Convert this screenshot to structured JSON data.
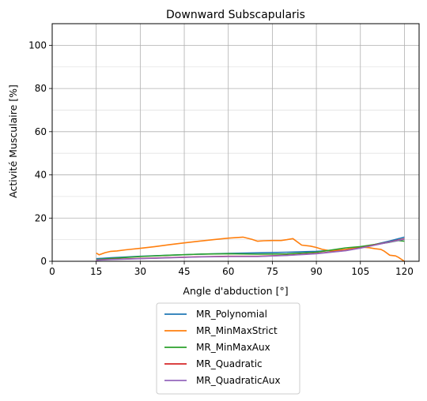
{
  "chart_data": {
    "type": "line",
    "title": "Downward Subscapularis",
    "xlabel": "Angle d'abduction [°]",
    "ylabel": "Activité Musculaire [%]",
    "xlim": [
      0,
      125
    ],
    "ylim": [
      0,
      110
    ],
    "xticks": [
      0,
      15,
      30,
      45,
      60,
      75,
      90,
      105,
      120
    ],
    "yticks": [
      0,
      20,
      40,
      60,
      80,
      100
    ],
    "yticks_minor": [
      10,
      30,
      50,
      70,
      90
    ],
    "grid": true,
    "legend_position": "below",
    "series": [
      {
        "name": "MR_Polynomial",
        "color": "#1f77b4",
        "x": [
          15,
          20,
          30,
          40,
          50,
          60,
          70,
          80,
          90,
          100,
          105,
          110,
          115,
          120
        ],
        "y": [
          1.2,
          1.6,
          2.3,
          2.8,
          3.3,
          3.6,
          3.9,
          4.2,
          4.6,
          5.4,
          6.4,
          7.8,
          9.4,
          11.2
        ]
      },
      {
        "name": "MR_MinMaxStrict",
        "color": "#ff7f0e",
        "x": [
          15,
          16,
          18,
          20,
          22,
          25,
          30,
          35,
          40,
          45,
          50,
          55,
          60,
          65,
          68,
          70,
          72,
          75,
          78,
          80,
          82,
          85,
          88,
          90,
          92,
          95,
          100,
          105,
          108,
          110,
          112,
          113,
          115,
          117,
          118,
          120
        ],
        "y": [
          3.8,
          3.0,
          4.0,
          4.6,
          4.8,
          5.3,
          6.0,
          6.8,
          7.7,
          8.5,
          9.3,
          10.0,
          10.7,
          11.2,
          10.2,
          9.3,
          9.5,
          9.6,
          9.6,
          10.0,
          10.5,
          7.5,
          7.0,
          6.4,
          5.5,
          4.8,
          5.5,
          6.6,
          6.3,
          5.8,
          5.5,
          4.8,
          2.8,
          2.5,
          1.8,
          0.0
        ]
      },
      {
        "name": "MR_MinMaxAux",
        "color": "#2ca02c",
        "x": [
          15,
          20,
          30,
          40,
          50,
          60,
          70,
          80,
          90,
          95,
          100,
          105,
          110,
          115,
          118,
          120
        ],
        "y": [
          0.8,
          1.3,
          2.2,
          2.8,
          3.3,
          3.5,
          3.3,
          3.4,
          4.2,
          5.2,
          6.2,
          6.8,
          7.8,
          8.8,
          9.6,
          9.3
        ]
      },
      {
        "name": "MR_Quadratic",
        "color": "#d62728",
        "x": [
          15,
          20,
          30,
          40,
          50,
          60,
          70,
          80,
          90,
          100,
          105,
          110,
          115,
          120
        ],
        "y": [
          0.6,
          0.9,
          1.3,
          1.7,
          2.1,
          2.3,
          2.3,
          2.8,
          3.6,
          5.0,
          6.2,
          7.6,
          9.0,
          10.4
        ]
      },
      {
        "name": "MR_QuadraticAux",
        "color": "#9467bd",
        "x": [
          15,
          20,
          30,
          40,
          50,
          60,
          70,
          80,
          90,
          100,
          105,
          110,
          115,
          120
        ],
        "y": [
          0.5,
          0.8,
          1.2,
          1.6,
          2.0,
          2.2,
          2.2,
          2.7,
          3.5,
          4.9,
          6.1,
          7.5,
          8.9,
          10.2
        ]
      }
    ]
  }
}
